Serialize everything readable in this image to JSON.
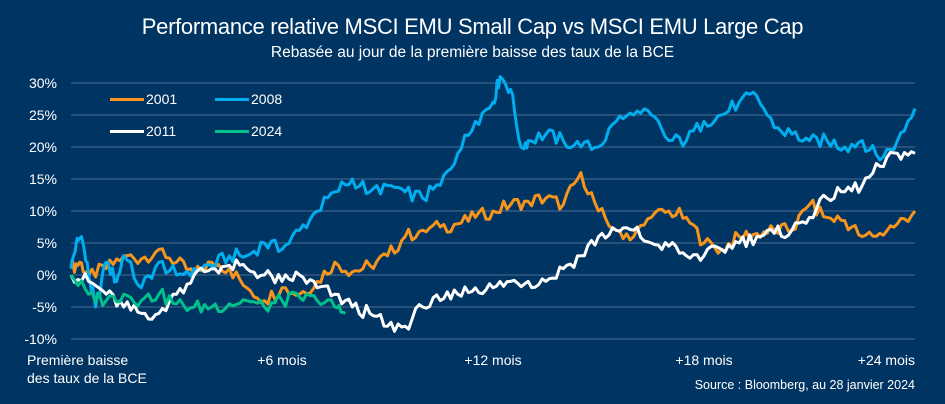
{
  "chart_data": {
    "type": "line",
    "title": "Performance relative MSCI EMU Small Cap vs MSCI EMU Large Cap",
    "subtitle": "Rebasée au jour de la première baisse des taux de la BCE",
    "xlabel": "",
    "ylabel": "",
    "xlim": [
      0,
      24
    ],
    "ylim": [
      -10,
      30
    ],
    "grid": true,
    "legend_placement": "top-left",
    "x_ticks": [
      {
        "value": 0,
        "label": "Première baisse\ndes taux de la BCE"
      },
      {
        "value": 6,
        "label": "+6 mois"
      },
      {
        "value": 12,
        "label": "+12 mois"
      },
      {
        "value": 18,
        "label": "+18 mois"
      },
      {
        "value": 24,
        "label": "+24 mois"
      }
    ],
    "y_ticks": [
      {
        "value": 30,
        "label": "30%"
      },
      {
        "value": 25,
        "label": "25%"
      },
      {
        "value": 20,
        "label": "20%"
      },
      {
        "value": 15,
        "label": "15%"
      },
      {
        "value": 10,
        "label": "10%"
      },
      {
        "value": 5,
        "label": "5%"
      },
      {
        "value": 0,
        "label": "0%"
      },
      {
        "value": -5,
        "label": "-5%"
      },
      {
        "value": -10,
        "label": "-10%"
      }
    ],
    "series": [
      {
        "name": "2001",
        "color": "#F7941D",
        "x": [
          0,
          0.25,
          0.5,
          1,
          1.5,
          2,
          2.5,
          3,
          3.5,
          4,
          4.5,
          5,
          5.5,
          6,
          6.5,
          7,
          7.5,
          8,
          8.5,
          9,
          9.5,
          10,
          10.5,
          11,
          11.5,
          12,
          12.5,
          13,
          13.5,
          14,
          14.5,
          15,
          15.5,
          16,
          16.5,
          17,
          17.5,
          18,
          18.5,
          19,
          19.5,
          20,
          20.5,
          21,
          21.5,
          22,
          22.5,
          23,
          23.5,
          24
        ],
        "values": [
          1,
          2,
          0,
          1,
          3,
          2.5,
          4,
          2,
          0,
          2,
          1,
          -2,
          -4,
          -2,
          -3,
          -1,
          2,
          0.5,
          1.5,
          3,
          6,
          7,
          7.5,
          8,
          9,
          10,
          11,
          11.5,
          12,
          11,
          16,
          10,
          7,
          6,
          9,
          10,
          9,
          5,
          4,
          6,
          6.5,
          7,
          7,
          11,
          9,
          8.5,
          6,
          6.5,
          8,
          10
        ]
      },
      {
        "name": "2008",
        "color": "#00AEEF",
        "x": [
          0,
          0.15,
          0.3,
          0.5,
          0.7,
          1,
          1.3,
          1.5,
          2,
          2.5,
          3,
          3.5,
          4,
          4.5,
          5,
          5.5,
          6,
          6.5,
          7,
          7.5,
          8,
          8.5,
          9,
          9.5,
          10,
          10.5,
          11,
          11.5,
          12,
          12.2,
          12.5,
          12.8,
          13,
          13.5,
          14,
          14.5,
          15,
          15.5,
          16,
          16.5,
          17,
          17.5,
          18,
          18.5,
          19,
          19.5,
          20,
          20.5,
          21,
          21.5,
          22,
          22.5,
          23,
          23.5,
          24
        ],
        "values": [
          1,
          5,
          6,
          0,
          -5,
          2,
          -1,
          3,
          -2,
          2,
          0,
          1,
          1.5,
          3,
          3,
          5,
          4,
          7,
          10,
          13,
          15,
          13,
          14,
          13,
          12,
          14,
          19,
          24,
          27,
          31,
          29,
          20,
          21,
          22,
          21,
          20,
          20,
          24,
          25,
          25,
          21,
          21,
          24,
          25,
          27,
          28,
          23,
          22,
          21,
          21,
          20,
          21,
          18,
          21,
          26
        ]
      },
      {
        "name": "2011",
        "color": "#FFFFFF",
        "x": [
          0,
          0.5,
          1,
          1.5,
          2,
          2.5,
          3,
          3.5,
          4,
          4.5,
          5,
          5.5,
          6,
          6.5,
          7,
          7.5,
          8,
          8.5,
          9,
          9.5,
          10,
          10.5,
          11,
          11.5,
          12,
          12.5,
          13,
          13.5,
          14,
          14.5,
          15,
          15.5,
          16,
          16.5,
          17,
          17.5,
          18,
          18.5,
          19,
          19.5,
          20,
          20.5,
          21,
          21.5,
          22,
          22.5,
          23,
          23.5,
          24
        ],
        "values": [
          0,
          -1,
          -3,
          -5,
          -6,
          -6,
          -3,
          0,
          1,
          1.5,
          1,
          0,
          -1,
          0,
          -2,
          -3,
          -5,
          -6,
          -8,
          -8,
          -5,
          -4,
          -3,
          -2,
          -2,
          -1,
          -1,
          -1,
          1,
          3,
          6,
          7,
          7,
          5,
          4.5,
          3,
          3,
          4,
          5,
          6,
          6.5,
          7,
          9,
          12,
          13,
          14,
          17,
          19,
          19
        ]
      },
      {
        "name": "2024",
        "color": "#00C08B",
        "x": [
          0,
          0.5,
          1,
          1.5,
          2,
          2.5,
          3,
          3.5,
          4,
          4.5,
          5,
          5.5,
          6,
          6.5,
          7,
          7.5,
          7.8
        ],
        "values": [
          0,
          -3,
          -4,
          -3,
          -4,
          -3,
          -4.5,
          -5,
          -5,
          -4.5,
          -4,
          -5,
          -4,
          -3.5,
          -4,
          -5,
          -6
        ]
      }
    ],
    "source": "Source : Bloomberg, au 28 janvier 2024"
  }
}
